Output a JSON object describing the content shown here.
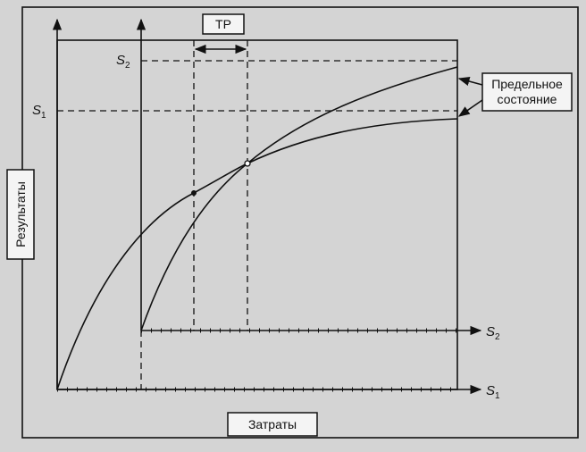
{
  "diagram": {
    "tr_label": "ТР",
    "y_levels": [
      {
        "symbol": "S",
        "subscript": "2"
      },
      {
        "symbol": "S",
        "subscript": "1"
      }
    ],
    "x_axes": [
      {
        "symbol": "S",
        "subscript": "2"
      },
      {
        "symbol": "S",
        "subscript": "1"
      }
    ],
    "callout": [
      "Предельное",
      "состояние"
    ],
    "y_axis_title": "Результаты",
    "x_axis_title": "Затраты"
  }
}
